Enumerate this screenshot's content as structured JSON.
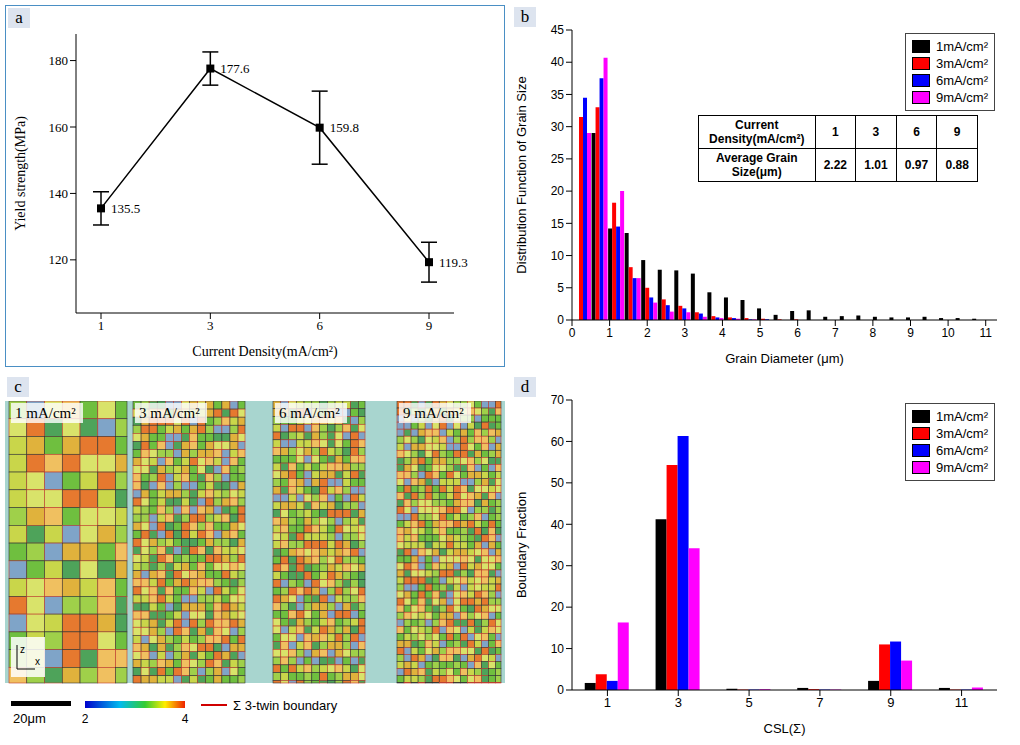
{
  "chart_data": [
    {
      "panel": "a",
      "type": "line",
      "x_label": "Current Density(mA/cm²)",
      "y_label": "Yield strength(MPa)",
      "categories": [
        1,
        3,
        6,
        9
      ],
      "values": [
        135.5,
        177.6,
        159.8,
        119.3
      ],
      "errors": [
        5,
        5,
        11,
        6
      ],
      "data_labels": true,
      "marker": "square",
      "color": "#000000",
      "ylim": [
        104,
        188
      ],
      "yticks": [
        120,
        140,
        160,
        180
      ]
    },
    {
      "panel": "b",
      "type": "bar",
      "x_label": "Grain Diameter (μm)",
      "y_label": "Distribution Function of Grain Size",
      "x": [
        0.3,
        0.74,
        1.18,
        1.62,
        2.06,
        2.5,
        2.94,
        3.38,
        3.82,
        4.26,
        4.7,
        5.14,
        5.58,
        6.02,
        6.46,
        6.9,
        7.34,
        7.78,
        8.22,
        8.66,
        9.1,
        9.54,
        9.98,
        10.42,
        10.86
      ],
      "xlim": [
        0,
        11.3
      ],
      "xticks": [
        0,
        1,
        2,
        3,
        4,
        5,
        6,
        7,
        8,
        9,
        10,
        11
      ],
      "ylim": [
        0,
        45
      ],
      "yticks": [
        0,
        5,
        10,
        15,
        20,
        25,
        30,
        35,
        40,
        45
      ],
      "legend": "upper right",
      "series": [
        {
          "name": "1mA/cm²",
          "color": "#000000",
          "values": [
            0,
            29,
            14.2,
            13.5,
            9.3,
            7.8,
            7.7,
            7.2,
            4.3,
            3.5,
            3.1,
            1.8,
            0.8,
            1.4,
            1.5,
            0.5,
            0.6,
            0.7,
            0.5,
            0.4,
            0.4,
            0.5,
            0.3,
            0.3,
            0.2
          ]
        },
        {
          "name": "3mA/cm²",
          "color": "#ff0000",
          "values": [
            31.5,
            33,
            18.2,
            8.2,
            5,
            3.2,
            2.2,
            1.2,
            0.6,
            0.4,
            0.3,
            0.2,
            0.1,
            0.1,
            0,
            0,
            0,
            0,
            0,
            0,
            0,
            0,
            0,
            0,
            0
          ]
        },
        {
          "name": "6mA/cm²",
          "color": "#0000ff",
          "values": [
            34.5,
            37.5,
            14.5,
            6.5,
            3.5,
            2.3,
            1.8,
            1,
            0.4,
            0.3,
            0.1,
            0.1,
            0,
            0,
            0,
            0,
            0,
            0,
            0,
            0,
            0,
            0,
            0,
            0,
            0
          ]
        },
        {
          "name": "9mA/cm²",
          "color": "#ff00ff",
          "values": [
            29,
            40.7,
            20,
            6.5,
            2.7,
            1.3,
            1.2,
            0.5,
            0.3,
            0.2,
            0.1,
            0,
            0,
            0,
            0,
            0,
            0,
            0,
            0,
            0,
            0,
            0,
            0,
            0,
            0
          ]
        }
      ],
      "table": {
        "header": [
          "Current Density(mA/cm²)",
          1,
          3,
          6,
          9
        ],
        "rows": [
          [
            "Average Grain Size(μm)",
            2.22,
            1.01,
            0.97,
            0.88
          ]
        ]
      }
    },
    {
      "panel": "d",
      "type": "bar",
      "x_label": "CSL(Σ)",
      "y_label": "Boundary Fraction",
      "categories": [
        1,
        3,
        5,
        7,
        9,
        11
      ],
      "ylim": [
        0,
        70
      ],
      "yticks": [
        0,
        10,
        20,
        30,
        40,
        50,
        60,
        70
      ],
      "legend": "upper right",
      "series": [
        {
          "name": "1mA/cm²",
          "color": "#000000",
          "values": [
            1.7,
            41.2,
            0.3,
            0.5,
            2.2,
            0.5
          ]
        },
        {
          "name": "3mA/cm²",
          "color": "#ff0000",
          "values": [
            3.8,
            54.3,
            0.1,
            0.2,
            11,
            0.1
          ]
        },
        {
          "name": "6mA/cm²",
          "color": "#0000ff",
          "values": [
            2.2,
            61.3,
            0.1,
            0.1,
            11.7,
            0.1
          ]
        },
        {
          "name": "9mA/cm²",
          "color": "#ff00ff",
          "values": [
            16.3,
            34.2,
            0.2,
            0.1,
            7.1,
            0.6
          ]
        }
      ]
    }
  ],
  "micrograph_panel": {
    "panel": "c",
    "images": [
      "1 mA/cm²",
      "3 mA/cm²",
      "6 mA/cm²",
      "9 mA/cm²"
    ],
    "scale_bar": "20μm",
    "color_key": [
      "2",
      "4"
    ],
    "twin_boundary_label": "Σ 3-twin boundary",
    "axes": [
      "z",
      "x"
    ]
  }
}
